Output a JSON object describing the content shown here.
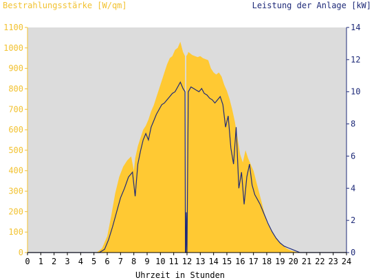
{
  "chart_data": {
    "type": "area",
    "left_axis": {
      "label": "Bestrahlungsstärke [W/qm]",
      "min": 0,
      "max": 1100,
      "ticks": [
        0,
        100,
        200,
        300,
        400,
        500,
        600,
        700,
        800,
        900,
        1000,
        1100
      ],
      "color": "#f2c230"
    },
    "right_axis": {
      "label": "Leistung der Anlage [kW]",
      "min": 0,
      "max": 14,
      "ticks": [
        0,
        2,
        4,
        6,
        8,
        10,
        12,
        14
      ],
      "color": "#1e2a78"
    },
    "x_axis": {
      "label": "Uhrzeit in Stunden",
      "min": 0,
      "max": 24,
      "ticks": [
        0,
        1,
        2,
        3,
        4,
        5,
        6,
        7,
        8,
        9,
        10,
        11,
        12,
        13,
        14,
        15,
        16,
        17,
        18,
        19,
        20,
        21,
        22,
        23,
        24
      ]
    },
    "grid": false,
    "background": "#dcdcdc",
    "series": [
      {
        "axis": "left",
        "kind": "area",
        "color": "#ffc933",
        "x": [
          0,
          5.2,
          5.6,
          6.0,
          6.3,
          6.6,
          6.9,
          7.2,
          7.5,
          7.8,
          8.0,
          8.1,
          8.3,
          8.5,
          8.7,
          8.9,
          9.1,
          9.3,
          9.5,
          9.7,
          9.9,
          10.1,
          10.3,
          10.5,
          10.7,
          10.9,
          11.1,
          11.3,
          11.5,
          11.7,
          11.85,
          11.88,
          11.92,
          11.95,
          12.05,
          12.1,
          12.2,
          12.4,
          12.6,
          12.8,
          13.0,
          13.2,
          13.4,
          13.6,
          13.8,
          14.0,
          14.2,
          14.4,
          14.6,
          14.8,
          15.0,
          15.2,
          15.4,
          15.6,
          15.8,
          16.0,
          16.2,
          16.4,
          16.6,
          16.8,
          17.0,
          17.2,
          17.4,
          17.6,
          17.8,
          18.0,
          18.3,
          18.6,
          18.9,
          19.2,
          19.5,
          19.8,
          20.1,
          20.4,
          24
        ],
        "values": [
          0,
          0,
          20,
          80,
          180,
          290,
          370,
          420,
          450,
          470,
          400,
          460,
          520,
          560,
          600,
          620,
          650,
          690,
          720,
          760,
          800,
          840,
          880,
          920,
          950,
          960,
          990,
          1000,
          1030,
          980,
          960,
          0,
          0,
          960,
          970,
          980,
          975,
          965,
          960,
          955,
          960,
          950,
          945,
          940,
          900,
          880,
          870,
          880,
          860,
          820,
          790,
          750,
          700,
          640,
          560,
          480,
          440,
          500,
          460,
          430,
          400,
          350,
          300,
          250,
          200,
          150,
          110,
          80,
          55,
          35,
          20,
          10,
          5,
          0,
          0
        ]
      },
      {
        "axis": "right",
        "kind": "line",
        "color": "#1e2a78",
        "x": [
          0,
          5.4,
          5.8,
          6.1,
          6.4,
          6.7,
          7.0,
          7.3,
          7.6,
          7.9,
          8.1,
          8.3,
          8.5,
          8.7,
          8.9,
          9.1,
          9.3,
          9.5,
          9.7,
          9.9,
          10.1,
          10.3,
          10.5,
          10.7,
          10.9,
          11.1,
          11.3,
          11.5,
          11.7,
          11.85,
          11.88,
          11.92,
          11.95,
          12.0,
          12.1,
          12.3,
          12.5,
          12.7,
          12.9,
          13.1,
          13.3,
          13.5,
          13.7,
          13.9,
          14.1,
          14.3,
          14.5,
          14.7,
          14.9,
          15.1,
          15.3,
          15.5,
          15.7,
          15.9,
          16.1,
          16.3,
          16.5,
          16.7,
          16.9,
          17.1,
          17.3,
          17.5,
          17.7,
          17.9,
          18.1,
          18.4,
          18.7,
          19.0,
          19.3,
          19.6,
          19.9,
          20.2,
          20.5,
          24
        ],
        "values": [
          0,
          0,
          0.2,
          0.8,
          1.6,
          2.5,
          3.4,
          4.0,
          4.7,
          5.0,
          3.5,
          5.5,
          6.3,
          7.0,
          7.4,
          7.0,
          7.8,
          8.2,
          8.6,
          8.9,
          9.2,
          9.3,
          9.5,
          9.7,
          9.9,
          10.0,
          10.3,
          10.6,
          10.2,
          10.0,
          0,
          0,
          2.5,
          0,
          10.0,
          10.3,
          10.2,
          10.1,
          10.0,
          10.2,
          9.9,
          9.8,
          9.6,
          9.5,
          9.3,
          9.5,
          9.7,
          9.2,
          7.8,
          8.5,
          6.5,
          5.5,
          7.8,
          4.0,
          5.0,
          3.0,
          4.7,
          5.5,
          4.2,
          3.6,
          3.3,
          3.0,
          2.6,
          2.2,
          1.8,
          1.3,
          0.9,
          0.6,
          0.4,
          0.3,
          0.2,
          0.1,
          0,
          0
        ]
      }
    ]
  }
}
